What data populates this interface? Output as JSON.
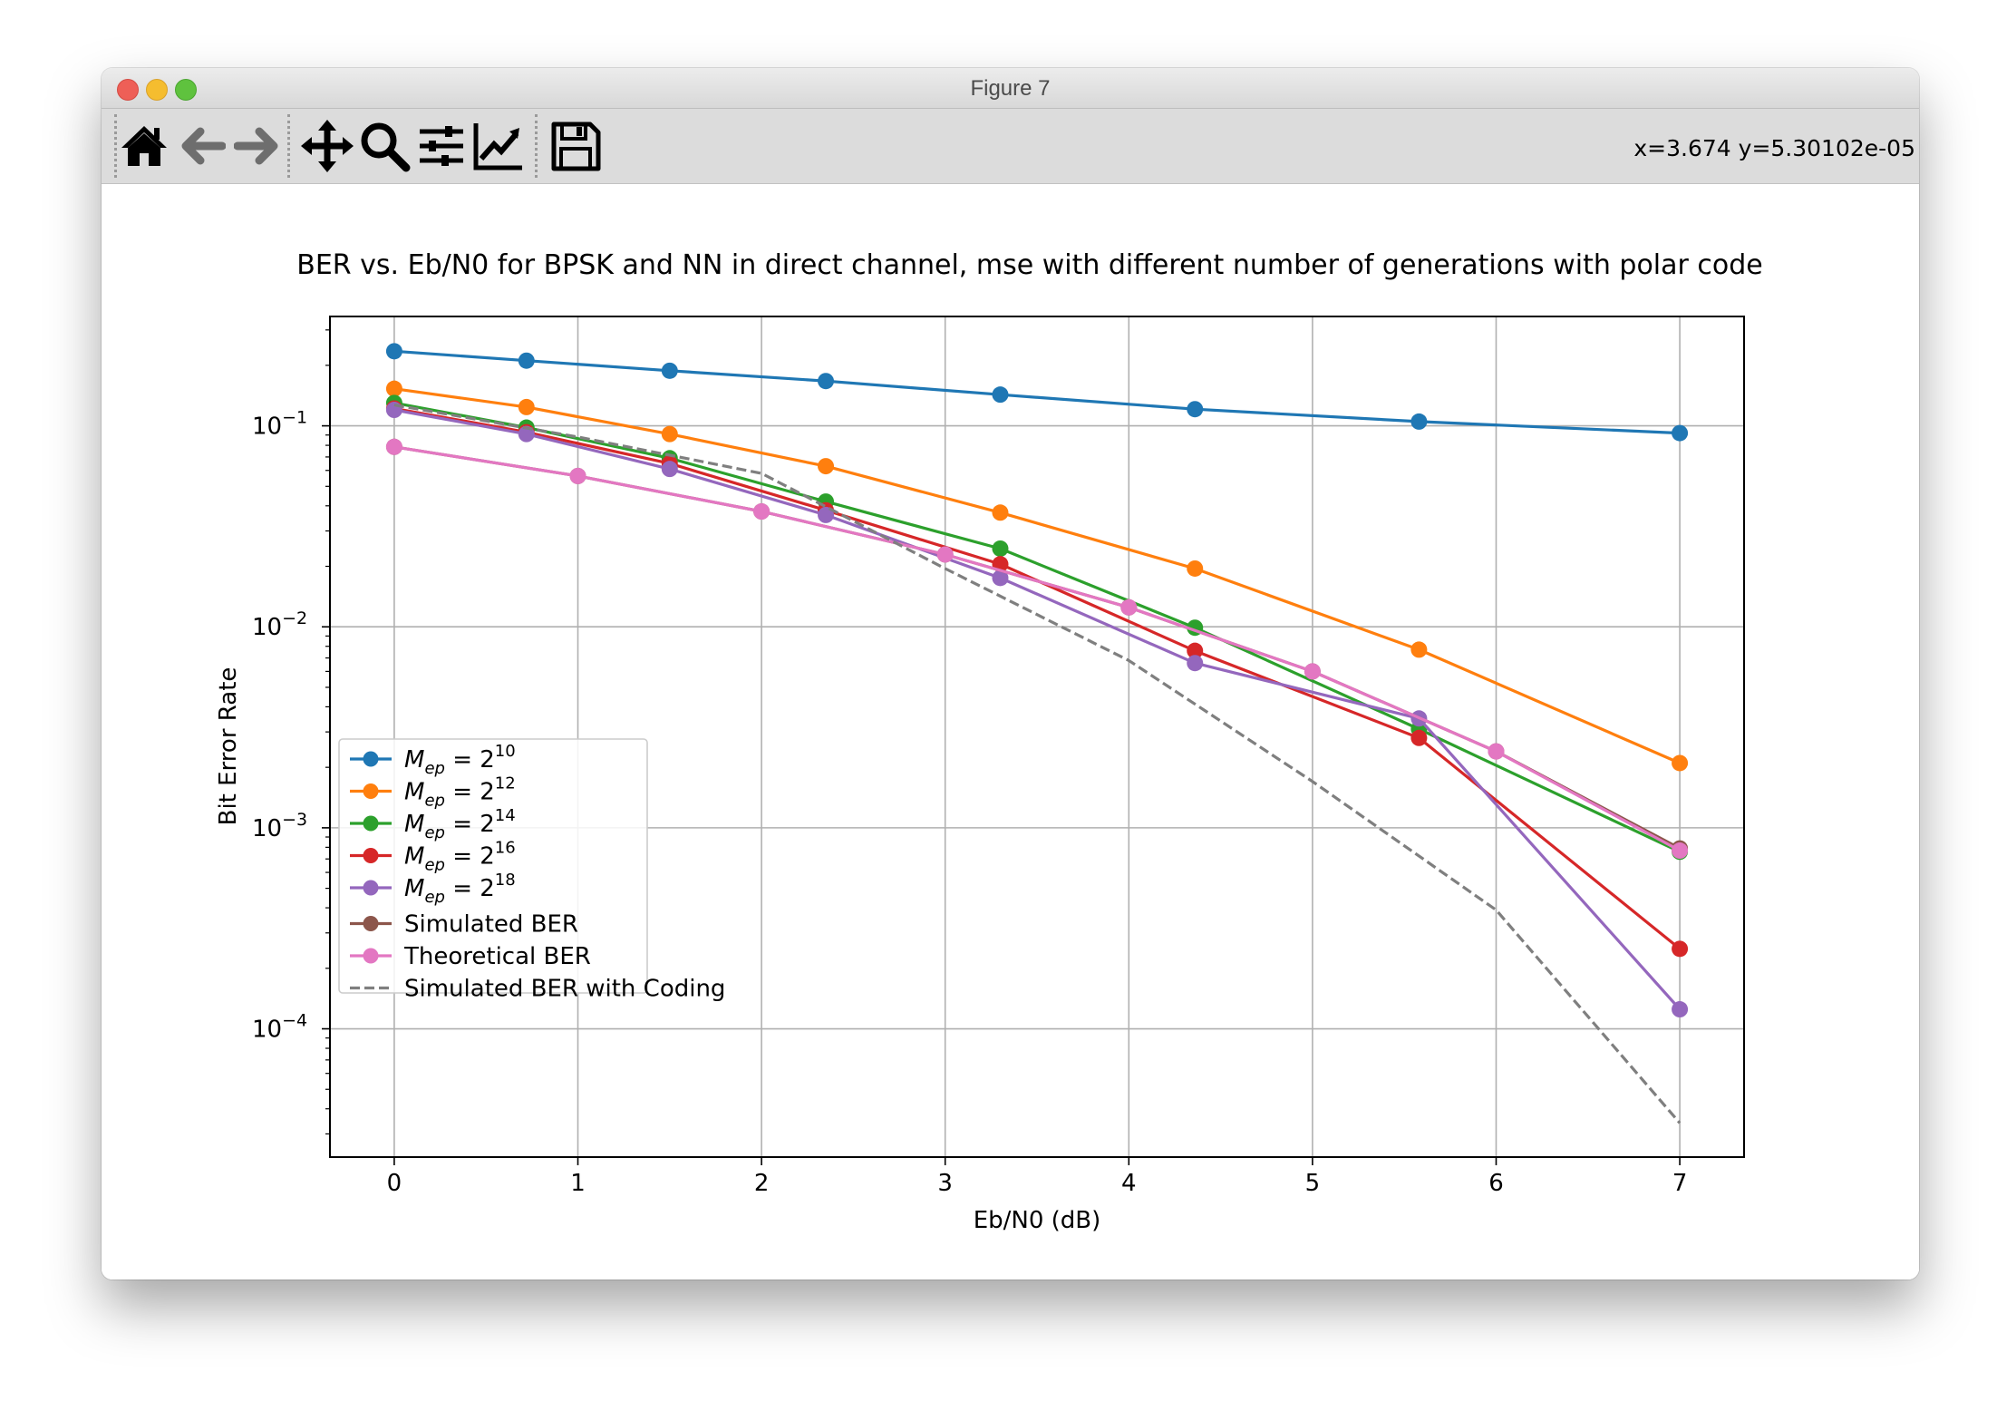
{
  "window": {
    "title": "Figure 7"
  },
  "toolbar": {
    "buttons": [
      {
        "name": "home-icon"
      },
      {
        "name": "back-arrow-icon"
      },
      {
        "name": "forward-arrow-icon"
      },
      {
        "name": "pan-icon"
      },
      {
        "name": "zoom-icon"
      },
      {
        "name": "subplots-icon"
      },
      {
        "name": "edit-curves-icon"
      },
      {
        "name": "save-icon"
      }
    ],
    "coordinates": "x=3.674 y=5.30102e-05"
  },
  "chart_data": {
    "type": "line",
    "title": "BER vs. Eb/N0 for BPSK and NN in direct channel, mse with different number of generations with polar code",
    "xlabel": "Eb/N0 (dB)",
    "ylabel": "Bit Error Rate",
    "xscale": "linear",
    "yscale": "log",
    "xlim": [
      -0.35,
      7.35
    ],
    "ylim": [
      2.3e-05,
      0.35
    ],
    "xticks": [
      "0",
      "1",
      "2",
      "3",
      "4",
      "5",
      "6",
      "7"
    ],
    "yticks": [
      {
        "value": 0.1,
        "base": "10",
        "exp": "−1"
      },
      {
        "value": 0.01,
        "base": "10",
        "exp": "−2"
      },
      {
        "value": 0.001,
        "base": "10",
        "exp": "−3"
      },
      {
        "value": 0.0001,
        "base": "10",
        "exp": "−4"
      }
    ],
    "grid": true,
    "legend_position": "lower-left",
    "series": [
      {
        "name": "M_ep = 2^10",
        "legend_sym": "M",
        "legend_sub": "ep",
        "legend_base": " = 2",
        "legend_exp": "10",
        "color": "#1f77b4",
        "style": "solid",
        "marker": true,
        "x": [
          0,
          0.72,
          1.5,
          2.35,
          3.3,
          4.36,
          5.58,
          7
        ],
        "y": [
          0.235,
          0.211,
          0.188,
          0.167,
          0.143,
          0.121,
          0.105,
          0.092
        ]
      },
      {
        "name": "M_ep = 2^12",
        "legend_sym": "M",
        "legend_sub": "ep",
        "legend_base": " = 2",
        "legend_exp": "12",
        "color": "#ff7f0e",
        "style": "solid",
        "marker": true,
        "x": [
          0,
          0.72,
          1.5,
          2.35,
          3.3,
          4.36,
          5.58,
          7
        ],
        "y": [
          0.153,
          0.124,
          0.091,
          0.063,
          0.037,
          0.0195,
          0.0077,
          0.0021
        ]
      },
      {
        "name": "M_ep = 2^14",
        "legend_sym": "M",
        "legend_sub": "ep",
        "legend_base": " = 2",
        "legend_exp": "14",
        "color": "#2ca02c",
        "style": "solid",
        "marker": true,
        "x": [
          0,
          0.72,
          1.5,
          2.35,
          3.3,
          4.36,
          5.58,
          7
        ],
        "y": [
          0.13,
          0.098,
          0.069,
          0.042,
          0.0245,
          0.0099,
          0.0031,
          0.00076
        ]
      },
      {
        "name": "M_ep = 2^16",
        "legend_sym": "M",
        "legend_sub": "ep",
        "legend_base": " = 2",
        "legend_exp": "16",
        "color": "#d62728",
        "style": "solid",
        "marker": true,
        "x": [
          0,
          0.72,
          1.5,
          2.35,
          3.3,
          4.36,
          5.58,
          7
        ],
        "y": [
          0.122,
          0.093,
          0.065,
          0.038,
          0.0205,
          0.0076,
          0.0028,
          0.00025
        ]
      },
      {
        "name": "M_ep = 2^18",
        "legend_sym": "M",
        "legend_sub": "ep",
        "legend_base": " = 2",
        "legend_exp": "18",
        "color": "#9467bd",
        "style": "solid",
        "marker": true,
        "x": [
          0,
          0.72,
          1.5,
          2.35,
          3.3,
          4.36,
          5.58,
          7
        ],
        "y": [
          0.12,
          0.091,
          0.061,
          0.036,
          0.0175,
          0.0066,
          0.0035,
          0.000125
        ]
      },
      {
        "name": "Simulated BER",
        "legend_label": "Simulated BER",
        "color": "#8c564b",
        "style": "solid",
        "marker": true,
        "x": [
          0,
          1,
          2,
          3,
          4,
          5,
          6,
          7
        ],
        "y": [
          0.0786,
          0.0563,
          0.0375,
          0.0229,
          0.0125,
          0.006,
          0.0024,
          0.00079
        ]
      },
      {
        "name": "Theoretical BER",
        "legend_label": "Theoretical BER",
        "color": "#e377c2",
        "style": "solid",
        "marker": true,
        "x": [
          0,
          1,
          2,
          3,
          4,
          5,
          6,
          7
        ],
        "y": [
          0.0786,
          0.0563,
          0.0375,
          0.0229,
          0.0125,
          0.006,
          0.0024,
          0.00077
        ]
      },
      {
        "name": "Simulated BER with Coding",
        "legend_label": "Simulated BER with Coding",
        "color": "#7f7f7f",
        "style": "dashed",
        "marker": false,
        "x": [
          0,
          1,
          2,
          3,
          4,
          5,
          6,
          7
        ],
        "y": [
          0.127,
          0.088,
          0.058,
          0.0195,
          0.0068,
          0.0017,
          0.00039,
          3.4e-05
        ]
      }
    ]
  }
}
